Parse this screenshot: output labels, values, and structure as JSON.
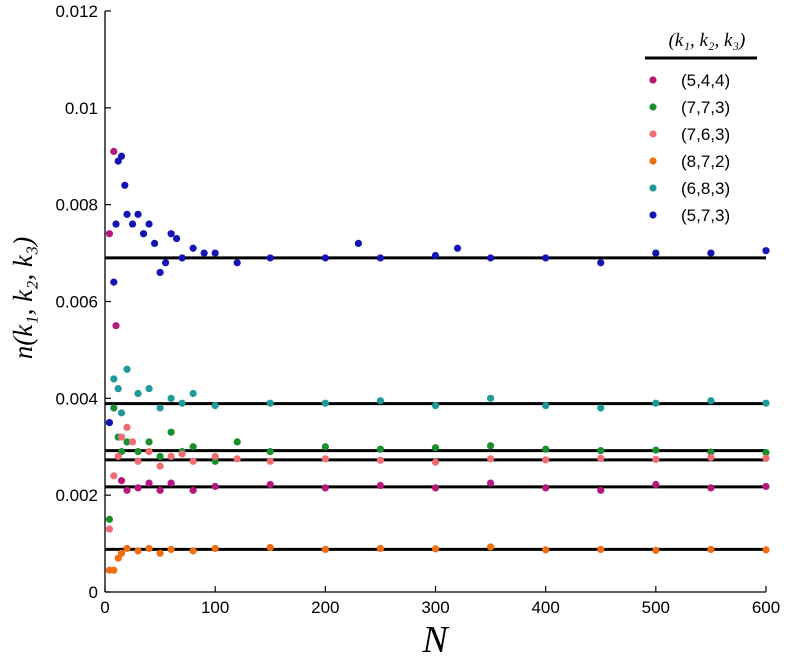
{
  "chart_data": {
    "type": "scatter",
    "xlabel": "N",
    "ylabel": "n(k₁, k₂, k₃)",
    "xlim": [
      0,
      600
    ],
    "ylim": [
      0,
      0.012
    ],
    "x_ticks": [
      0,
      100,
      200,
      300,
      400,
      500,
      600
    ],
    "x_tick_labels": [
      "0",
      "100",
      "200",
      "300",
      "400",
      "500",
      "600"
    ],
    "y_ticks": [
      0,
      0.002,
      0.004,
      0.006,
      0.008,
      0.01,
      0.012
    ],
    "y_tick_labels": [
      "0",
      "0.002",
      "0.004",
      "0.006",
      "0.008",
      "0.01",
      "0.012"
    ],
    "grid": false,
    "legend_position": "top-right",
    "legend_title": "(k₁, k₂, k₃)",
    "reference_lines": [
      {
        "y": 0.0069,
        "x_range": [
          0,
          600
        ]
      },
      {
        "y": 0.00389,
        "x_range": [
          0,
          600
        ]
      },
      {
        "y": 0.00292,
        "x_range": [
          0,
          600
        ]
      },
      {
        "y": 0.00273,
        "x_range": [
          0,
          600
        ]
      },
      {
        "y": 0.00217,
        "x_range": [
          0,
          600
        ]
      },
      {
        "y": 0.00088,
        "x_range": [
          0,
          600
        ]
      }
    ],
    "series": [
      {
        "name": "(5,4,4)",
        "color": "#b5177d",
        "x": [
          4,
          8,
          10,
          15,
          20,
          30,
          40,
          50,
          60,
          80,
          100,
          150,
          200,
          250,
          300,
          350,
          400,
          450,
          500,
          550,
          600
        ],
        "y": [
          0.0074,
          0.0091,
          0.0055,
          0.0023,
          0.0021,
          0.00215,
          0.00225,
          0.0021,
          0.00225,
          0.0021,
          0.00218,
          0.00222,
          0.00215,
          0.0022,
          0.00215,
          0.00225,
          0.00215,
          0.0021,
          0.00222,
          0.00215,
          0.00218
        ]
      },
      {
        "name": "(7,7,3)",
        "color": "#1a8f2e",
        "x": [
          4,
          8,
          12,
          15,
          20,
          30,
          40,
          50,
          60,
          70,
          80,
          100,
          120,
          150,
          200,
          250,
          300,
          350,
          400,
          450,
          500,
          550,
          600
        ],
        "y": [
          0.0015,
          0.0038,
          0.0032,
          0.0029,
          0.0031,
          0.0029,
          0.0031,
          0.0028,
          0.0033,
          0.0029,
          0.003,
          0.0027,
          0.0031,
          0.0029,
          0.003,
          0.00295,
          0.00298,
          0.00302,
          0.00295,
          0.00292,
          0.00293,
          0.00289,
          0.00288
        ]
      },
      {
        "name": "(7,6,3)",
        "color": "#f06c74",
        "x": [
          4,
          8,
          12,
          15,
          20,
          25,
          30,
          40,
          50,
          60,
          70,
          80,
          100,
          120,
          150,
          200,
          250,
          300,
          350,
          400,
          450,
          500,
          550,
          600
        ],
        "y": [
          0.0013,
          0.0024,
          0.0028,
          0.0032,
          0.0034,
          0.0031,
          0.0027,
          0.0029,
          0.0026,
          0.0028,
          0.00285,
          0.0027,
          0.0028,
          0.00275,
          0.0027,
          0.00275,
          0.00272,
          0.00268,
          0.00275,
          0.00273,
          0.00276,
          0.00274,
          0.00278,
          0.00276
        ]
      },
      {
        "name": "(8,7,2)",
        "color": "#f06d12",
        "x": [
          4,
          8,
          12,
          15,
          20,
          30,
          40,
          50,
          60,
          80,
          100,
          150,
          200,
          250,
          300,
          350,
          400,
          450,
          500,
          550,
          600
        ],
        "y": [
          0.00045,
          0.00045,
          0.0007,
          0.0008,
          0.0009,
          0.00085,
          0.0009,
          0.0008,
          0.00088,
          0.00085,
          0.0009,
          0.00092,
          0.00088,
          0.0009,
          0.00089,
          0.00093,
          0.00087,
          0.00088,
          0.00086,
          0.00088,
          0.00087
        ]
      },
      {
        "name": "(6,8,3)",
        "color": "#1f9999",
        "x": [
          4,
          8,
          12,
          15,
          20,
          30,
          40,
          50,
          60,
          70,
          80,
          100,
          150,
          200,
          250,
          300,
          350,
          400,
          450,
          500,
          550,
          600
        ],
        "y": [
          0.0035,
          0.0044,
          0.0042,
          0.0037,
          0.0046,
          0.0041,
          0.0042,
          0.0038,
          0.004,
          0.0039,
          0.0041,
          0.00385,
          0.0039,
          0.0039,
          0.00395,
          0.00385,
          0.004,
          0.00385,
          0.0038,
          0.0039,
          0.00395,
          0.0039
        ]
      },
      {
        "name": "(5,7,3)",
        "color": "#1414b4",
        "x": [
          4,
          8,
          10,
          12,
          15,
          18,
          20,
          25,
          30,
          35,
          40,
          45,
          50,
          55,
          60,
          65,
          70,
          80,
          90,
          100,
          120,
          150,
          200,
          230,
          250,
          300,
          320,
          350,
          400,
          450,
          500,
          550,
          600
        ],
        "y": [
          0.0035,
          0.0064,
          0.0076,
          0.0089,
          0.009,
          0.0084,
          0.0078,
          0.0076,
          0.0078,
          0.0074,
          0.0076,
          0.0072,
          0.0066,
          0.0068,
          0.0074,
          0.0073,
          0.0069,
          0.0071,
          0.007,
          0.007,
          0.0068,
          0.0069,
          0.0069,
          0.0072,
          0.0069,
          0.00695,
          0.0071,
          0.0069,
          0.0069,
          0.0068,
          0.007,
          0.007,
          0.00705
        ]
      }
    ]
  }
}
